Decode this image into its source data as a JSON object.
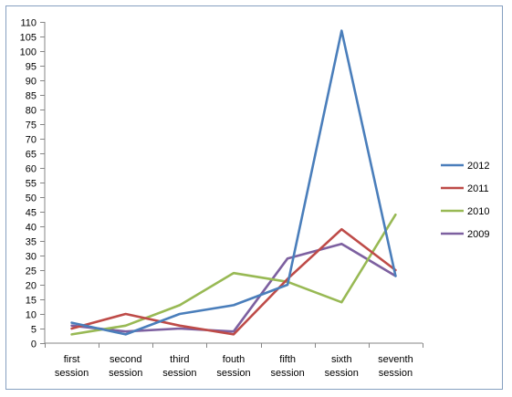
{
  "chart_data": {
    "type": "line",
    "title": "",
    "xlabel": "",
    "ylabel": "",
    "categories": [
      [
        "first",
        "session"
      ],
      [
        "second",
        "session"
      ],
      [
        "third",
        "session"
      ],
      [
        "fouth",
        "session"
      ],
      [
        "fifth",
        "session"
      ],
      [
        "sixth",
        "session"
      ],
      [
        "seventh",
        "session"
      ]
    ],
    "ylim": [
      0,
      110
    ],
    "ytick_step": 5,
    "grid": false,
    "legend_position": "right",
    "series": [
      {
        "name": "2012",
        "color": "#4a7ebb",
        "values": [
          7,
          3,
          10,
          13,
          20,
          107,
          23
        ]
      },
      {
        "name": "2011",
        "color": "#be4b48",
        "values": [
          5,
          10,
          6,
          3,
          22,
          39,
          25
        ]
      },
      {
        "name": "2010",
        "color": "#98b954",
        "values": [
          3,
          6,
          13,
          24,
          21,
          14,
          44
        ]
      },
      {
        "name": "2009",
        "color": "#7d60a0",
        "values": [
          6,
          4,
          5,
          4,
          29,
          34,
          23
        ]
      }
    ]
  }
}
